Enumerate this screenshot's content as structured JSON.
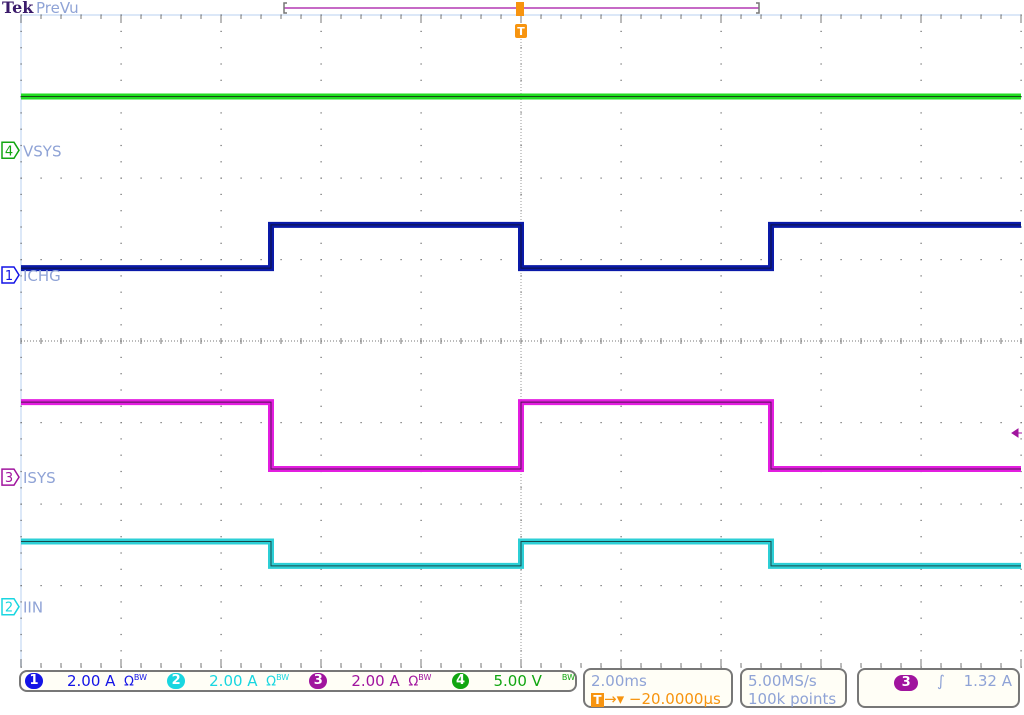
{
  "header": {
    "brand": "Tek",
    "mode": "PreVu"
  },
  "channels": [
    {
      "id": "1",
      "label": "ICHG",
      "scale": "2.00 A",
      "flags": "Ω",
      "bw": "BW",
      "color": "#1414e6",
      "trace_color": "#0a1aa8"
    },
    {
      "id": "2",
      "label": "IIN",
      "scale": "2.00 A",
      "flags": "Ω",
      "bw": "BW",
      "color": "#19d6e0",
      "trace_color": "#2ccfd6"
    },
    {
      "id": "3",
      "label": "ISYS",
      "scale": "2.00 A",
      "flags": "Ω",
      "bw": "BW",
      "color": "#a0149e",
      "trace_color": "#e31ee0"
    },
    {
      "id": "4",
      "label": "VSYS",
      "scale": "5.00 V",
      "flags": "",
      "bw": "BW",
      "color": "#11a611",
      "trace_color": "#22dd22"
    }
  ],
  "timebase": {
    "scale": "2.00ms",
    "delay": "−20.0000µs",
    "trigger_marker": "T"
  },
  "acquisition": {
    "sample_rate": "5.00MS/s",
    "record_length": "100k points"
  },
  "trigger": {
    "source": "3",
    "slope": "rising",
    "slope_glyph": "∫",
    "level": "1.32 A"
  },
  "chart_data": {
    "type": "line",
    "title": "",
    "xlabel": "",
    "ylabel": "",
    "x_unit": "ms",
    "xlim": [
      -10,
      10
    ],
    "x_divisions": 10,
    "y_divisions": 8,
    "grid": true,
    "series": [
      {
        "name": "VSYS",
        "channel": "4",
        "unit": "V",
        "points": [
          [
            -10,
            3.3
          ],
          [
            10,
            3.3
          ]
        ]
      },
      {
        "name": "ICHG",
        "channel": "1",
        "unit": "A",
        "points": [
          [
            -10,
            0.17
          ],
          [
            -5,
            0.17
          ],
          [
            -5,
            1.23
          ],
          [
            0,
            1.23
          ],
          [
            0,
            0.17
          ],
          [
            5,
            0.17
          ],
          [
            5,
            1.23
          ],
          [
            10,
            1.23
          ]
        ]
      },
      {
        "name": "ISYS",
        "channel": "3",
        "unit": "A",
        "points": [
          [
            -10,
            1.84
          ],
          [
            -5,
            1.84
          ],
          [
            -5,
            0.2
          ],
          [
            0,
            0.2
          ],
          [
            0,
            1.84
          ],
          [
            5,
            1.84
          ],
          [
            5,
            0.2
          ],
          [
            10,
            0.2
          ]
        ]
      },
      {
        "name": "IIN",
        "channel": "2",
        "unit": "A",
        "points": [
          [
            -10,
            1.6
          ],
          [
            -5,
            1.6
          ],
          [
            -5,
            1.0
          ],
          [
            0,
            1.0
          ],
          [
            0,
            1.6
          ],
          [
            5,
            1.6
          ],
          [
            5,
            1.0
          ],
          [
            10,
            1.0
          ]
        ]
      }
    ]
  }
}
